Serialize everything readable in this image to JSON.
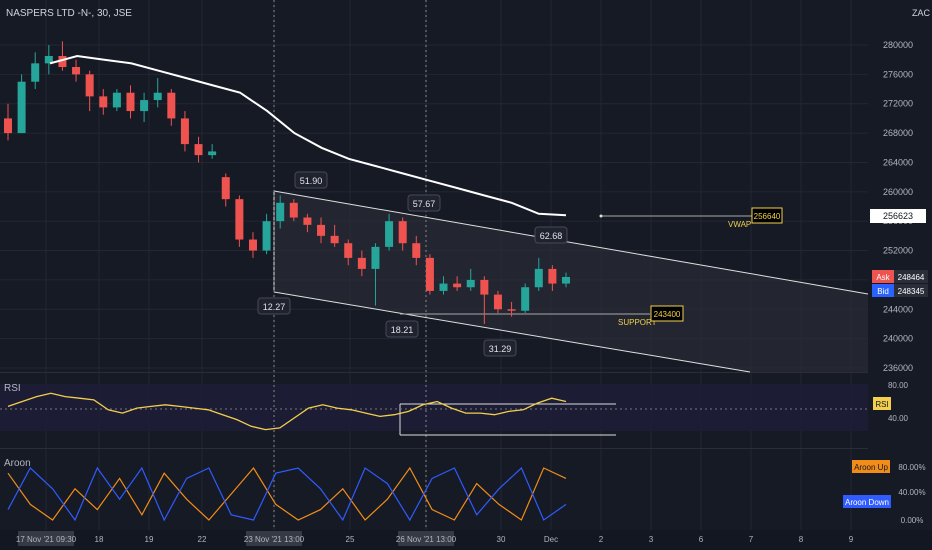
{
  "header": {
    "symbol_title": "NASPERS LTD -N-, 30, JSE",
    "currency": "ZAC"
  },
  "chart_data": {
    "type": "line",
    "price_scale": {
      "ticks": [
        280000,
        276000,
        272000,
        268000,
        264000,
        260000,
        256000,
        252000,
        248000,
        244000,
        240000,
        236000
      ],
      "tick_labels": [
        "280000",
        "276000",
        "272000",
        "268000",
        "264000",
        "260000",
        "256000",
        "252000",
        "248000",
        "244000",
        "240000",
        "236000"
      ]
    },
    "x_axis": {
      "labels": [
        "17 Nov '21  09:30",
        "18",
        "19",
        "22",
        "23 Nov '21  13:00",
        "25",
        "26 Nov '21  13:00",
        "30",
        "Dec",
        "2",
        "3",
        "6",
        "7",
        "8",
        "9"
      ]
    },
    "price_series": [
      {
        "t": "Nov 16",
        "o": 270000,
        "h": 272000,
        "l": 267000,
        "c": 268000
      },
      {
        "t": "Nov 16",
        "o": 268000,
        "h": 276000,
        "l": 268000,
        "c": 275000
      },
      {
        "t": "Nov 17",
        "o": 275000,
        "h": 279000,
        "l": 274000,
        "c": 277500
      },
      {
        "t": "Nov 17",
        "o": 277500,
        "h": 280000,
        "l": 276000,
        "c": 278500
      },
      {
        "t": "Nov 17",
        "o": 278500,
        "h": 280500,
        "l": 276500,
        "c": 277000
      },
      {
        "t": "Nov 18",
        "o": 277000,
        "h": 278000,
        "l": 275000,
        "c": 276000
      },
      {
        "t": "Nov 18",
        "o": 276000,
        "h": 276500,
        "l": 271000,
        "c": 273000
      },
      {
        "t": "Nov 18",
        "o": 273000,
        "h": 274000,
        "l": 270500,
        "c": 271500
      },
      {
        "t": "Nov 19",
        "o": 271500,
        "h": 274000,
        "l": 271000,
        "c": 273500
      },
      {
        "t": "Nov 19",
        "o": 273500,
        "h": 274500,
        "l": 270000,
        "c": 271000
      },
      {
        "t": "Nov 19",
        "o": 271000,
        "h": 273500,
        "l": 269500,
        "c": 272500
      },
      {
        "t": "Nov 19",
        "o": 272500,
        "h": 275500,
        "l": 271500,
        "c": 273500
      },
      {
        "t": "Nov 22",
        "o": 273500,
        "h": 274000,
        "l": 269000,
        "c": 270000
      },
      {
        "t": "Nov 22",
        "o": 270000,
        "h": 271000,
        "l": 265500,
        "c": 266500
      },
      {
        "t": "Nov 22",
        "o": 266500,
        "h": 267500,
        "l": 264000,
        "c": 265000
      },
      {
        "t": "Nov 22",
        "o": 265000,
        "h": 266500,
        "l": 264500,
        "c": 265500
      },
      {
        "t": "Nov 23",
        "o": 262000,
        "h": 262500,
        "l": 258000,
        "c": 259000
      },
      {
        "t": "Nov 23",
        "o": 259000,
        "h": 259500,
        "l": 252500,
        "c": 253500
      },
      {
        "t": "Nov 23",
        "o": 253500,
        "h": 254500,
        "l": 251000,
        "c": 252000
      },
      {
        "t": "Nov 24",
        "o": 252000,
        "h": 257000,
        "l": 251500,
        "c": 256000
      },
      {
        "t": "Nov 24",
        "o": 256000,
        "h": 259500,
        "l": 255000,
        "c": 258500
      },
      {
        "t": "Nov 24",
        "o": 258500,
        "h": 259000,
        "l": 256000,
        "c": 256500
      },
      {
        "t": "Nov 24",
        "o": 256500,
        "h": 257000,
        "l": 254500,
        "c": 255500
      },
      {
        "t": "Nov 25",
        "o": 255500,
        "h": 256500,
        "l": 253000,
        "c": 254000
      },
      {
        "t": "Nov 25",
        "o": 254000,
        "h": 255500,
        "l": 252500,
        "c": 253000
      },
      {
        "t": "Nov 25",
        "o": 253000,
        "h": 253500,
        "l": 250000,
        "c": 251000
      },
      {
        "t": "Nov 25",
        "o": 251000,
        "h": 252000,
        "l": 248500,
        "c": 249500
      },
      {
        "t": "Nov 26",
        "o": 249500,
        "h": 253000,
        "l": 244500,
        "c": 252500
      },
      {
        "t": "Nov 26",
        "o": 252500,
        "h": 257000,
        "l": 252000,
        "c": 256000
      },
      {
        "t": "Nov 26",
        "o": 256000,
        "h": 256500,
        "l": 252000,
        "c": 253000
      },
      {
        "t": "Nov 26",
        "o": 253000,
        "h": 254000,
        "l": 250000,
        "c": 251000
      },
      {
        "t": "Nov 29",
        "o": 251000,
        "h": 251500,
        "l": 246000,
        "c": 246500
      },
      {
        "t": "Nov 29",
        "o": 246500,
        "h": 248500,
        "l": 246000,
        "c": 247500
      },
      {
        "t": "Nov 29",
        "o": 247500,
        "h": 248500,
        "l": 246500,
        "c": 247000
      },
      {
        "t": "Nov 29",
        "o": 247000,
        "h": 249500,
        "l": 246500,
        "c": 248000
      },
      {
        "t": "Nov 30",
        "o": 248000,
        "h": 248500,
        "l": 242000,
        "c": 246000
      },
      {
        "t": "Nov 30",
        "o": 246000,
        "h": 246500,
        "l": 243500,
        "c": 244000
      },
      {
        "t": "Nov 30",
        "o": 244000,
        "h": 245000,
        "l": 243000,
        "c": 243800
      },
      {
        "t": "Dec 1",
        "o": 243800,
        "h": 247500,
        "l": 243500,
        "c": 247000
      },
      {
        "t": "Dec 1",
        "o": 247000,
        "h": 251000,
        "l": 246500,
        "c": 249500
      },
      {
        "t": "Dec 1",
        "o": 249500,
        "h": 250000,
        "l": 246500,
        "c": 247500
      },
      {
        "t": "Dec 1",
        "o": 247500,
        "h": 249000,
        "l": 247000,
        "c": 248400
      }
    ],
    "vwap": {
      "label": "VWAP",
      "value": "256640",
      "values": [
        277500,
        278500,
        278000,
        277500,
        276500,
        275500,
        274500,
        273500,
        271000,
        268000,
        266000,
        264500,
        263500,
        262500,
        261500,
        260500,
        259500,
        258500,
        257000,
        256800
      ]
    },
    "price_annotations": [
      "51.90",
      "57.67",
      "62.68",
      "12.27",
      "18.21",
      "31.29"
    ],
    "support": {
      "label": "SUPPORT",
      "value": "243400"
    },
    "last_price": "256623",
    "ask": {
      "label": "Ask",
      "value": "248464"
    },
    "bid": {
      "label": "Bid",
      "value": "248345"
    },
    "rsi": {
      "label": "RSI",
      "ticks": [
        "80.00",
        "40.00"
      ],
      "tag": "RSI",
      "values": [
        54,
        60,
        66,
        70,
        66,
        64,
        62,
        50,
        46,
        52,
        54,
        56,
        54,
        52,
        50,
        44,
        38,
        30,
        26,
        28,
        40,
        52,
        56,
        52,
        50,
        46,
        42,
        44,
        48,
        56,
        60,
        52,
        46,
        46,
        44,
        48,
        50,
        58,
        64,
        60
      ]
    },
    "aroon": {
      "label": "Aroon",
      "ticks": [
        "80.00%",
        "40.00%",
        "0.00%"
      ],
      "up": {
        "name": "Aroon Up",
        "values": [
          90,
          30,
          0,
          60,
          20,
          80,
          10,
          90,
          40,
          0,
          50,
          100,
          30,
          0,
          20,
          60,
          0,
          40,
          100,
          20,
          0,
          70,
          30,
          0,
          100,
          80
        ]
      },
      "down": {
        "name": "Aroon Down",
        "values": [
          20,
          100,
          60,
          0,
          100,
          40,
          100,
          0,
          80,
          100,
          10,
          0,
          90,
          100,
          60,
          0,
          100,
          70,
          0,
          80,
          100,
          10,
          60,
          100,
          0,
          30
        ]
      }
    }
  }
}
